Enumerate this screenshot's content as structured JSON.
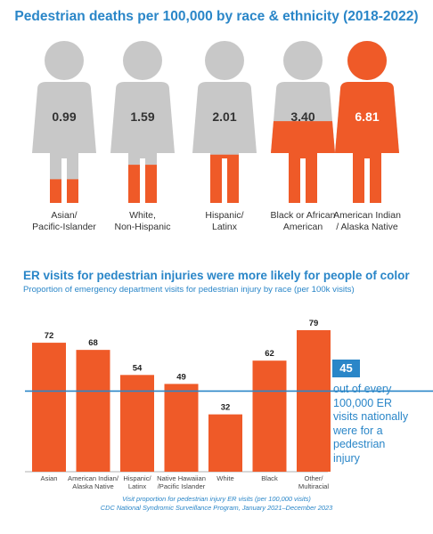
{
  "figure_title": "Pedestrian deaths per 100,000 by race & ethnicity (2018-2022)",
  "deaths": [
    {
      "value": "0.99",
      "label": "Asian/\nPacific-Islander",
      "fill": 0.145
    },
    {
      "value": "1.59",
      "label": "White,\nNon-Hispanic",
      "fill": 0.233
    },
    {
      "value": "2.01",
      "label": "Hispanic/\nLatinx",
      "fill": 0.295
    },
    {
      "value": "3.40",
      "label": "Black or African\nAmerican",
      "fill": 0.499
    },
    {
      "value": "6.81",
      "label": "American Indian\n/ Alaska Native",
      "fill": 1.0
    }
  ],
  "chart_title": "ER visits for pedestrian injuries were more likely for people of color",
  "chart_subtitle": "Proportion of emergency department visits for pedestrian injury by race (per 100k visits)",
  "average": {
    "value": "45",
    "text": "out of every\n100,000 ER\nvisits nationally\nwere for a\npedestrian\ninjury"
  },
  "source_line1": "Visit proportion for pedestrian injury ER visits (per 100,000 visits)",
  "source_line2": "CDC National Syndromic Surveillance Program, January 2021–December 2023",
  "colors": {
    "accent": "#2a86c8",
    "bar": "#ef5a28",
    "figure": "#c8c8c8"
  },
  "chart_data": {
    "type": "bar",
    "title": "ER visits for pedestrian injuries were more likely for people of color",
    "subtitle": "Proportion of emergency department visits for pedestrian injury by race (per 100k visits)",
    "categories": [
      "Asian",
      "American Indian/\nAlaska Native",
      "Hispanic/\nLatinx",
      "Native Hawaiian\n/Pacific Islander",
      "White",
      "Black",
      "Other/\nMultiracial"
    ],
    "values": [
      72,
      68,
      54,
      49,
      32,
      62,
      79
    ],
    "reference_line": 45,
    "ylim": [
      0,
      80
    ],
    "grid": false,
    "xlabel": "",
    "ylabel": ""
  }
}
